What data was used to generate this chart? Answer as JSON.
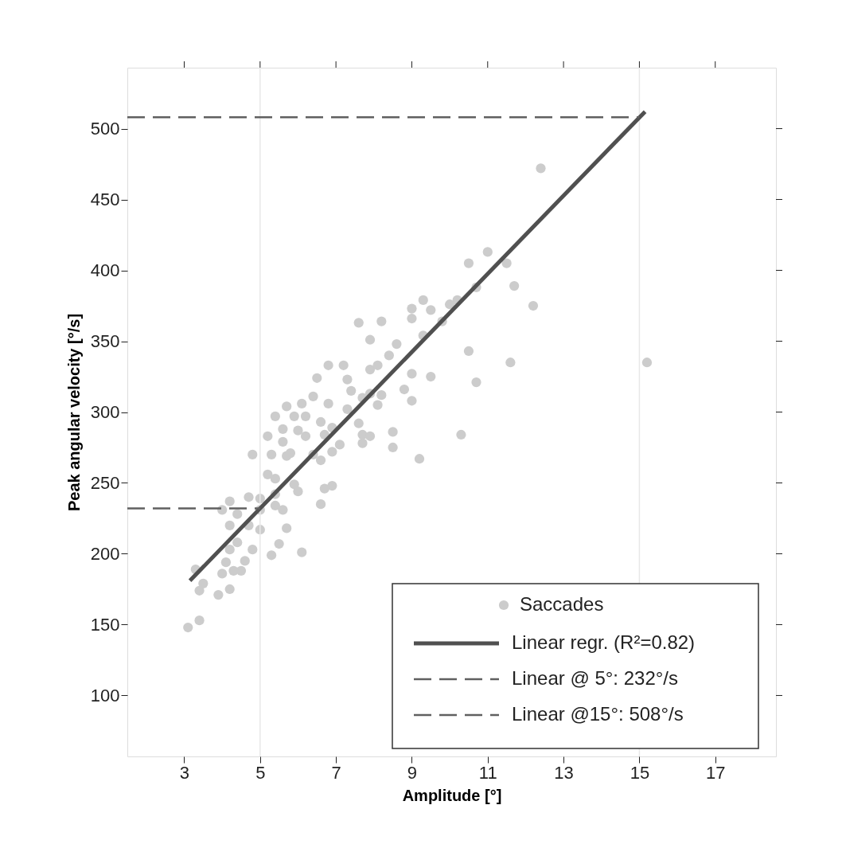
{
  "chart_data": {
    "type": "scatter",
    "xlabel": "Amplitude [°]",
    "ylabel": "Peak angular velocity [°/s]",
    "xlim": [
      1.5,
      18.6
    ],
    "ylim": [
      57,
      543
    ],
    "xticks": [
      3,
      5,
      7,
      9,
      11,
      13,
      15,
      17
    ],
    "yticks": [
      100,
      150,
      200,
      250,
      300,
      350,
      400,
      450,
      500
    ],
    "legend": "bottom right",
    "ref_lines": [
      {
        "axis": "x",
        "value": 5,
        "color": "#e8e8e8"
      },
      {
        "axis": "x",
        "value": 15,
        "color": "#e8e8e8"
      }
    ],
    "series": [
      {
        "name": "Saccades",
        "marker": "circle",
        "color": "#cccccc",
        "x": [
          12.4,
          11.0,
          10.5,
          11.5,
          11.7,
          10.7,
          12.2,
          10.2,
          10.0,
          9.3,
          9.0,
          9.5,
          9.8,
          9.3,
          9.0,
          7.6,
          8.2,
          7.9,
          8.6,
          8.4,
          10.5,
          11.6,
          15.2,
          7.2,
          6.8,
          6.5,
          7.9,
          8.1,
          9.0,
          9.5,
          10.7,
          8.8,
          7.3,
          7.4,
          8.2,
          6.4,
          7.9,
          7.7,
          9.0,
          8.1,
          5.7,
          6.1,
          6.2,
          6.8,
          7.3,
          7.6,
          5.9,
          5.6,
          6.6,
          9.2,
          8.5,
          8.5,
          7.7,
          7.9,
          7.7,
          6.9,
          6.7,
          7.1,
          6.2,
          6.0,
          5.4,
          5.2,
          5.6,
          5.8,
          6.4,
          6.9,
          6.6,
          10.3,
          4.8,
          5.2,
          5.4,
          5.9,
          5.4,
          6.0,
          6.7,
          6.9,
          6.6,
          4.7,
          5.0,
          5.4,
          4.4,
          4.7,
          5.0,
          5.7,
          4.2,
          4.4,
          5.5,
          4.8,
          5.3,
          6.1,
          4.2,
          4.1,
          4.6,
          4.5,
          4.3,
          4.0,
          4.2,
          3.9,
          3.3,
          3.4,
          3.5,
          3.4,
          3.1,
          5.0,
          4.0,
          4.2,
          5.6,
          5.7,
          5.3
        ],
        "values": [
          472,
          413,
          405,
          405,
          389,
          388,
          375,
          379,
          376,
          379,
          373,
          372,
          364,
          354,
          366,
          363,
          364,
          351,
          348,
          340,
          343,
          335,
          335,
          333,
          333,
          324,
          330,
          333,
          327,
          325,
          321,
          316,
          323,
          315,
          312,
          311,
          313,
          310,
          308,
          305,
          304,
          306,
          297,
          306,
          302,
          292,
          297,
          288,
          293,
          267,
          275,
          286,
          284,
          283,
          278,
          289,
          284,
          277,
          283,
          287,
          297,
          283,
          279,
          271,
          270,
          272,
          266,
          284,
          270,
          256,
          253,
          249,
          242,
          244,
          246,
          248,
          235,
          240,
          239,
          234,
          228,
          220,
          217,
          218,
          220,
          208,
          207,
          203,
          199,
          201,
          203,
          194,
          195,
          188,
          188,
          186,
          175,
          171,
          189,
          174,
          179,
          153,
          148,
          231,
          231,
          237,
          231,
          269,
          270
        ]
      },
      {
        "name": "Linear regr. (R²=0.82)",
        "type": "line",
        "line_style": "solid",
        "color": "#505050",
        "x": [
          3.15,
          15.15
        ],
        "values": [
          181,
          512
        ]
      },
      {
        "name": "Linear @ 5°: 232°/s",
        "type": "line",
        "line_style": "dashed",
        "color": "#606060",
        "x": [
          1.5,
          5
        ],
        "values": [
          232,
          232
        ]
      },
      {
        "name": "Linear @15°: 508°/s",
        "type": "line",
        "line_style": "dashed",
        "color": "#606060",
        "x": [
          1.5,
          15
        ],
        "values": [
          508,
          508
        ]
      }
    ]
  }
}
